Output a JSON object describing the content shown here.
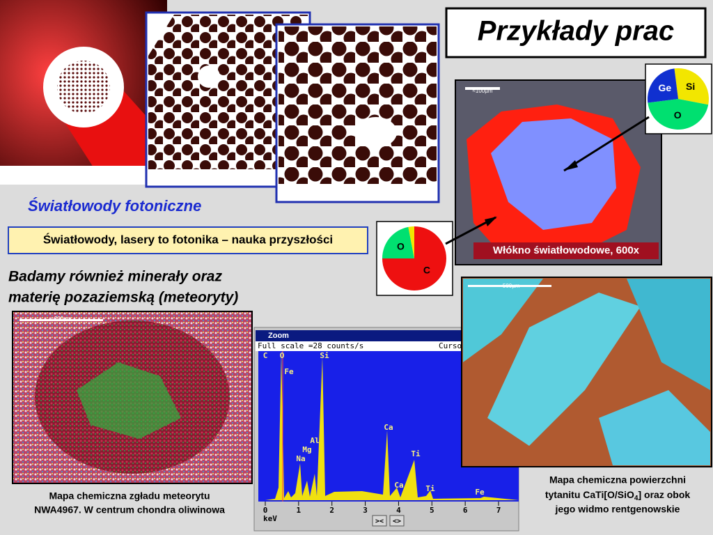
{
  "title": "Przykłady prac",
  "fibers": {
    "heading": "Światłowody fotoniczne",
    "banner": "Światłowody, lasery to fotonika – nauka przyszłości"
  },
  "minerals": {
    "lines": [
      "Badamy również minerały oraz",
      "materię pozaziemską (meteoryty)"
    ]
  },
  "fiber_image": {
    "scale": "≈100µm",
    "label": "Włókno światłowodowe, 600x"
  },
  "meteorite": {
    "scale": "≈200µm",
    "caption": [
      "Mapa chemiczna zgładu meteorytu",
      "NWA4967. W centrum chondra oliwinowa"
    ]
  },
  "titanite": {
    "scale": "≈500µm",
    "caption": [
      "Mapa chemiczna powierzchni",
      [
        "tytanitu CaTi[O/SiO",
        "4",
        "] oraz obok"
      ],
      "jego widmo rentgenowskie"
    ]
  },
  "pies": [
    {
      "type": "pie",
      "labels": [
        "Si",
        "O",
        "Ge"
      ],
      "values": [
        30,
        45,
        25
      ],
      "colors": [
        "#f2e600",
        "#00e070",
        "#1030d0"
      ],
      "label_colors": [
        "#000000",
        "#000000",
        "#ffffff"
      ]
    },
    {
      "type": "pie",
      "labels": [
        "C",
        "O",
        null
      ],
      "values": [
        75,
        22,
        3
      ],
      "colors": [
        "#ee1010",
        "#00e070",
        "#f2e600"
      ],
      "label_colors": [
        "#000000",
        "#000000",
        "#000000"
      ]
    }
  ],
  "spectrum": {
    "window": "Zoom",
    "scale": "Full scale =28  counts/s",
    "cursor": "Curso",
    "xlabel": "keV",
    "xticks": [
      0,
      1,
      2,
      3,
      4,
      5,
      6,
      7
    ],
    "xlim": [
      0,
      7
    ],
    "peaks": [
      "C",
      "O",
      "Si",
      "Fe",
      "Ca",
      "Ti",
      "Mg",
      "Al",
      "Na",
      "Ca",
      "Ti",
      "Fe"
    ],
    "buttons": [
      "><",
      "<>"
    ]
  }
}
